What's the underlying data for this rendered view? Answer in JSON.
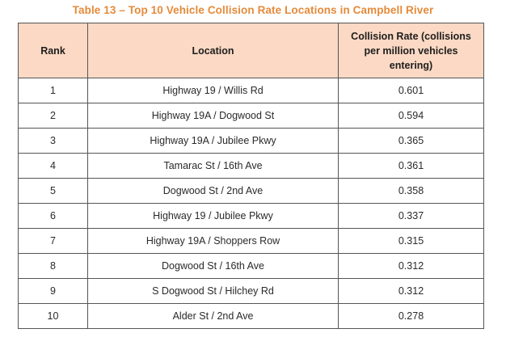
{
  "caption": "Table 13 – Top 10 Vehicle Collision Rate Locations in Campbell River",
  "colors": {
    "caption": "#e58a3a",
    "header_bg": "#fbd9c4",
    "border": "#555555"
  },
  "table": {
    "headers": {
      "rank": "Rank",
      "location": "Location",
      "rate": "Collision Rate (collisions per million vehicles entering)"
    },
    "rows": [
      {
        "rank": "1",
        "location": "Highway 19 / Willis Rd",
        "rate": "0.601"
      },
      {
        "rank": "2",
        "location": "Highway 19A / Dogwood St",
        "rate": "0.594"
      },
      {
        "rank": "3",
        "location": "Highway 19A / Jubilee Pkwy",
        "rate": "0.365"
      },
      {
        "rank": "4",
        "location": "Tamarac St / 16th Ave",
        "rate": "0.361"
      },
      {
        "rank": "5",
        "location": "Dogwood St / 2nd Ave",
        "rate": "0.358"
      },
      {
        "rank": "6",
        "location": "Highway 19 / Jubilee Pkwy",
        "rate": "0.337"
      },
      {
        "rank": "7",
        "location": "Highway 19A / Shoppers Row",
        "rate": "0.315"
      },
      {
        "rank": "8",
        "location": "Dogwood St / 16th Ave",
        "rate": "0.312"
      },
      {
        "rank": "9",
        "location": "S Dogwood St / Hilchey Rd",
        "rate": "0.312"
      },
      {
        "rank": "10",
        "location": "Alder St / 2nd Ave",
        "rate": "0.278"
      }
    ]
  }
}
